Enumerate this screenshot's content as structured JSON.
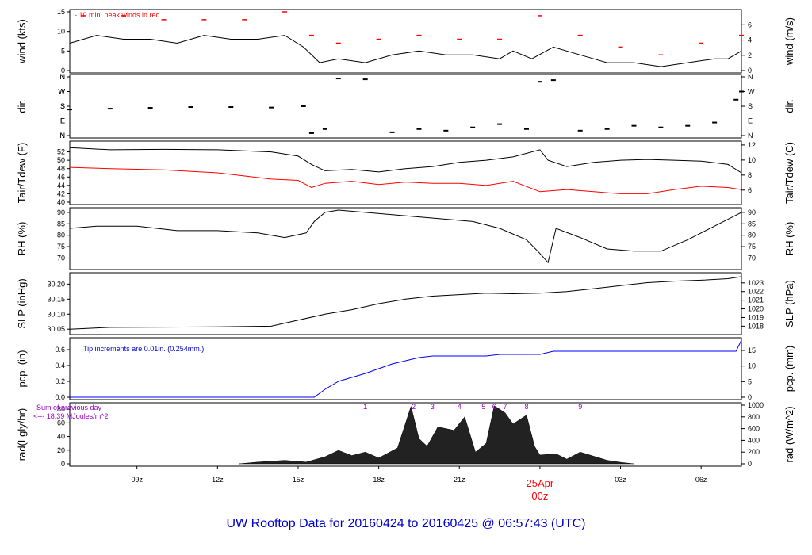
{
  "footer": {
    "title": "UW Rooftop Data for 20160424  to  20160425 @ 06:57:43  (UTC)"
  },
  "colors": {
    "series": "#000000",
    "dew": "#ff0000",
    "peak": "#ff0000",
    "precip": "#0000ff",
    "note_blue": "#0000cc",
    "note_purple": "#9900cc",
    "date_label": "#ff0000"
  },
  "chart_data": [
    {
      "type": "line",
      "panel": "wind",
      "ylabel_left": "wind (kts)",
      "ylabel_right": "wind (m/s)",
      "annotation": "10 min. peak winds in red",
      "yticks_left": [
        "0",
        "5",
        "10",
        "15"
      ],
      "ylim_left": [
        0,
        15
      ],
      "yticks_right": [
        "0",
        "2",
        "4",
        "6"
      ],
      "ylim_right": [
        0,
        7.7
      ],
      "series": [
        {
          "name": "wind",
          "x": [
            6.5,
            7.5,
            8.5,
            9.5,
            10.5,
            11.5,
            12.5,
            13.5,
            14.5,
            15.2,
            15.8,
            16.5,
            17.5,
            18.5,
            19.5,
            20.5,
            21.5,
            22.5,
            23,
            23.7,
            24.5,
            25.5,
            26,
            26.5,
            27.5,
            28.5,
            29.5,
            30.5,
            31,
            31.5
          ],
          "y": [
            7,
            9,
            8,
            8,
            7,
            9,
            8,
            8,
            9,
            6,
            2,
            3,
            2,
            4,
            5,
            4,
            4,
            3,
            5,
            3,
            6,
            4,
            3,
            2,
            2,
            1,
            2,
            3,
            3,
            5
          ]
        },
        {
          "name": "10 min. peak winds in red",
          "x": [
            7,
            8.5,
            10,
            11.5,
            13,
            14.5,
            15.5,
            16.5,
            18,
            19.5,
            21,
            22.5,
            24,
            25.5,
            27,
            28.5,
            30,
            31.5
          ],
          "y": [
            14,
            14,
            13,
            13,
            13,
            15,
            9,
            7,
            8,
            9,
            8,
            8,
            14,
            9,
            6,
            4,
            7,
            9
          ]
        }
      ]
    },
    {
      "type": "scatter",
      "panel": "dir.",
      "ylabel_left": "dir.",
      "ylabel_right": "dir.",
      "yticks_left": [
        "N",
        "E",
        "S",
        "W",
        "N"
      ],
      "ylim": [
        0,
        360
      ],
      "yticks_right": [
        "N",
        "E",
        "S",
        "W",
        "N"
      ],
      "series": [
        {
          "name": "dir.",
          "x": [
            6.5,
            8,
            9.5,
            11,
            12.5,
            14,
            15.2,
            15.5,
            16,
            16.5,
            17.5,
            18.5,
            19.5,
            20.5,
            21.5,
            22.5,
            23.5,
            24,
            24.5,
            25.5,
            26.5,
            27.5,
            28.5,
            29.5,
            30.5,
            31.3,
            31.5
          ],
          "y": [
            160,
            165,
            170,
            175,
            175,
            172,
            180,
            15,
            40,
            350,
            345,
            20,
            40,
            30,
            50,
            70,
            40,
            330,
            340,
            30,
            40,
            60,
            50,
            60,
            80,
            220,
            270
          ]
        }
      ]
    },
    {
      "type": "line",
      "panel": "temperature",
      "ylabel_left": "Tair/Tdew (F)",
      "ylabel_right": "Tair/Tdew (C)",
      "yticks_left": [
        "40",
        "42",
        "44",
        "46",
        "48",
        "50",
        "52"
      ],
      "ylim_left": [
        40,
        54
      ],
      "yticks_right": [
        "6",
        "8",
        "10",
        "12"
      ],
      "ylim_right": [
        4.4,
        12.2
      ],
      "series": [
        {
          "name": "Tair",
          "x": [
            6.5,
            8,
            10,
            12,
            14,
            15,
            15.5,
            16,
            17,
            18,
            19,
            20,
            21,
            22,
            23,
            24,
            24.3,
            25,
            26,
            27,
            28,
            29,
            30,
            31,
            31.5
          ],
          "y": [
            53,
            52.5,
            52.6,
            52.5,
            52,
            51,
            49,
            47.5,
            47.8,
            47.2,
            48,
            48.5,
            49.5,
            50,
            50.8,
            52.5,
            50,
            48.5,
            49.5,
            50,
            50.2,
            50,
            49.8,
            49,
            47
          ]
        },
        {
          "name": "Tdew",
          "x": [
            6.5,
            8,
            10,
            12,
            14,
            15,
            15.5,
            16,
            17,
            18,
            19,
            20,
            21,
            22,
            23,
            24,
            25,
            26,
            27,
            28,
            29,
            30,
            31,
            31.5
          ],
          "y": [
            48.3,
            48,
            47.7,
            47,
            45.5,
            45.2,
            43.5,
            44.5,
            45,
            44.2,
            44.8,
            44.5,
            44.5,
            44,
            45,
            42.5,
            43,
            42.5,
            42,
            42,
            43,
            43.8,
            43.5,
            43
          ]
        }
      ]
    },
    {
      "type": "line",
      "panel": "RH",
      "ylabel_left": "RH (%)",
      "ylabel_right": "RH (%)",
      "yticks_left": [
        "70",
        "75",
        "80",
        "85",
        "90"
      ],
      "ylim": [
        66,
        91
      ],
      "yticks_right": [
        "70",
        "75",
        "80",
        "85",
        "90"
      ],
      "series": [
        {
          "name": "RH",
          "x": [
            6.5,
            7.5,
            9,
            10.5,
            12,
            13.5,
            14.5,
            15.3,
            15.6,
            16,
            16.5,
            17.5,
            18.5,
            19.5,
            20.5,
            21.5,
            22.5,
            23.5,
            24,
            24.3,
            24.6,
            25.5,
            26.5,
            27.5,
            28.5,
            29.5,
            30.5,
            31.5
          ],
          "y": [
            83,
            84,
            84,
            82,
            82,
            81,
            79,
            81,
            86,
            90,
            91,
            90,
            89,
            88,
            87,
            86,
            83,
            78,
            72,
            68,
            83,
            79,
            74,
            73,
            73,
            78,
            84,
            90
          ]
        }
      ]
    },
    {
      "type": "line",
      "panel": "SLP",
      "ylabel_left": "SLP (inHg)",
      "ylabel_right": "SLP (hPa)",
      "yticks_left": [
        "30.05",
        "30.10",
        "30.15",
        "30.20"
      ],
      "ylim_left": [
        30.04,
        30.23
      ],
      "yticks_right": [
        "1018",
        "1019",
        "1020",
        "1021",
        "1022",
        "1023"
      ],
      "ylim_right": [
        1017.3,
        1023.9
      ],
      "series": [
        {
          "name": "SLP",
          "x": [
            6.5,
            8,
            10,
            12,
            14,
            15,
            16,
            17,
            18,
            19,
            20,
            21,
            22,
            23,
            24,
            25,
            26,
            27,
            28,
            29,
            30,
            31,
            31.5
          ],
          "y": [
            30.05,
            30.056,
            30.057,
            30.058,
            30.06,
            30.08,
            30.1,
            30.115,
            30.135,
            30.15,
            30.16,
            30.165,
            30.17,
            30.168,
            30.17,
            30.175,
            30.185,
            30.195,
            30.205,
            30.21,
            30.213,
            30.218,
            30.225
          ]
        }
      ]
    },
    {
      "type": "area",
      "panel": "precipitation",
      "ylabel_left": "pcp. (in)",
      "ylabel_right": "pcp. (mm)",
      "annotation": "Tip increments are 0.01in. (0.254mm.)",
      "yticks_left": [
        "0.0",
        "0.2",
        "0.4",
        "0.6"
      ],
      "ylim_left": [
        0,
        0.72
      ],
      "yticks_right": [
        "0",
        "5",
        "10",
        "15"
      ],
      "ylim_right": [
        0,
        18.3
      ],
      "series": [
        {
          "name": "pcp.",
          "x": [
            6.5,
            15.6,
            16,
            16.5,
            17,
            17.5,
            18,
            18.5,
            19,
            19.5,
            20,
            21,
            22,
            22.5,
            23,
            24,
            24.5,
            25,
            26,
            27,
            28,
            29,
            30,
            31.3,
            31.5
          ],
          "y": [
            0,
            0,
            0.1,
            0.2,
            0.25,
            0.3,
            0.36,
            0.42,
            0.46,
            0.5,
            0.52,
            0.52,
            0.52,
            0.54,
            0.54,
            0.54,
            0.58,
            0.58,
            0.58,
            0.58,
            0.58,
            0.58,
            0.58,
            0.58,
            0.72
          ]
        }
      ]
    },
    {
      "type": "area",
      "panel": "radiation",
      "ylabel_left": "rad(Lgly/hr)",
      "ylabel_right": "rad (W/m^2)",
      "annotation_1": "Sum of previous day",
      "annotation_2": "<--- 18.39 MJoules/m^2",
      "yticks_left": [
        "0",
        "20",
        "40",
        "60",
        "80"
      ],
      "ylim_left": [
        0,
        86
      ],
      "yticks_right": [
        "0",
        "200",
        "400",
        "600",
        "800",
        "1000"
      ],
      "ylim_right": [
        0,
        1000
      ],
      "peak_labels": [
        "1",
        "2",
        "3",
        "4",
        "5",
        "6",
        "7",
        "8",
        "9"
      ],
      "peak_label_hours": [
        17.5,
        19.3,
        20,
        21,
        21.9,
        22.3,
        22.7,
        23.5,
        25.5
      ],
      "series": [
        {
          "name": "rad",
          "x": [
            12.8,
            13.5,
            14.5,
            15.3,
            16,
            16.5,
            17,
            17.5,
            18,
            18.7,
            19.2,
            19.5,
            19.8,
            20.2,
            20.8,
            21.2,
            21.6,
            22,
            22.3,
            22.7,
            23,
            23.5,
            23.8,
            24,
            24.6,
            25,
            25.5,
            26,
            26.5,
            27,
            27.5
          ],
          "y": [
            0,
            30,
            60,
            30,
            120,
            230,
            140,
            200,
            100,
            270,
            980,
            430,
            300,
            630,
            570,
            800,
            200,
            350,
            990,
            870,
            680,
            830,
            300,
            150,
            170,
            80,
            200,
            130,
            60,
            25,
            0
          ]
        }
      ]
    }
  ],
  "xaxis": {
    "range_hours": [
      6.5,
      31.5
    ],
    "ticks": [
      {
        "hour": 9,
        "label": "09z"
      },
      {
        "hour": 12,
        "label": "12z"
      },
      {
        "hour": 15,
        "label": "15z"
      },
      {
        "hour": 18,
        "label": "18z"
      },
      {
        "hour": 21,
        "label": "21z"
      },
      {
        "hour": 27,
        "label": "03z"
      },
      {
        "hour": 30,
        "label": "06z"
      }
    ],
    "day_label_date": "25Apr",
    "day_label_time": "00z"
  }
}
